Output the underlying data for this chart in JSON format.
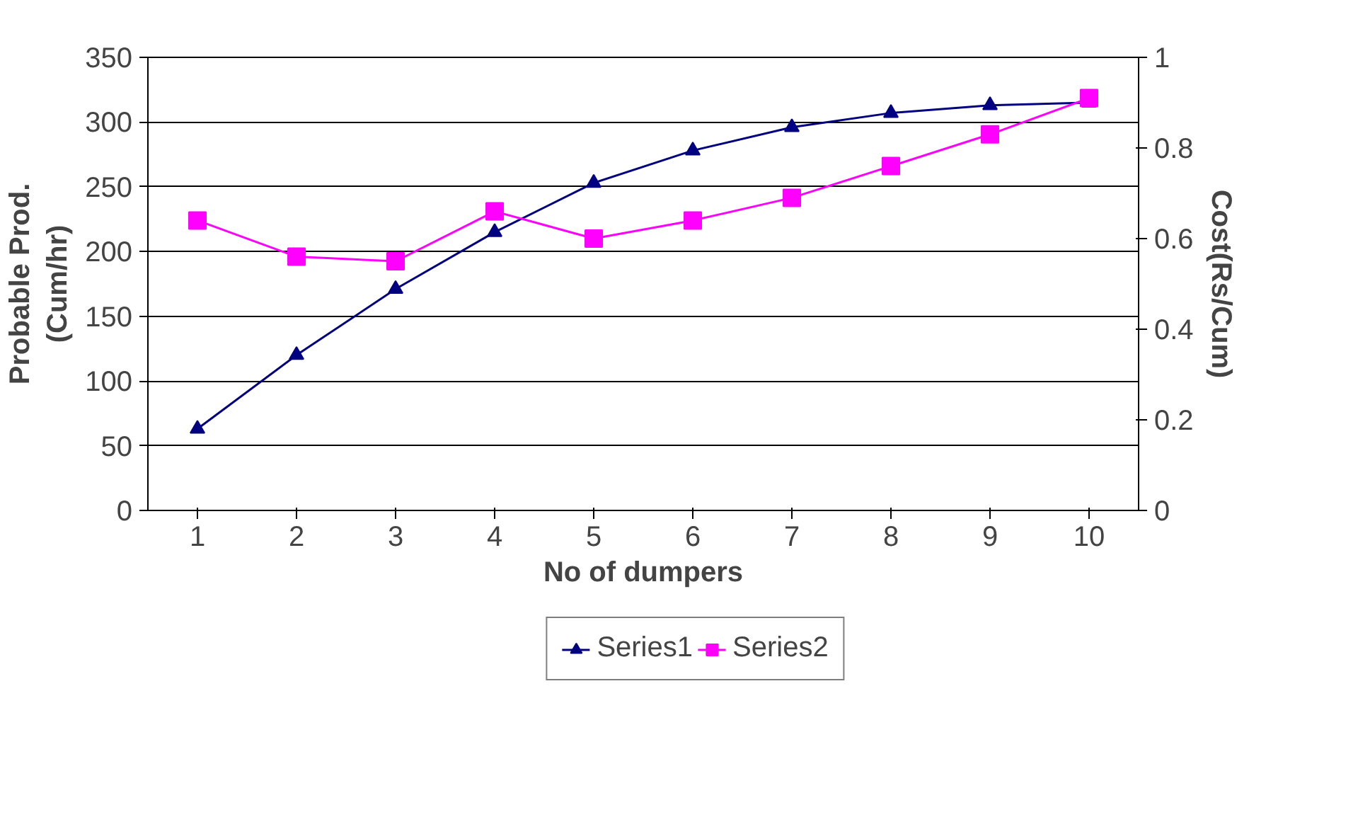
{
  "chart_data": {
    "type": "line",
    "xlabel": "No of dumpers",
    "ylabel": "Probable Prod.\n(Cum/hr)",
    "y2label": "Cost(Rs/Cum)",
    "categories": [
      "1",
      "2",
      "3",
      "4",
      "5",
      "6",
      "7",
      "8",
      "9",
      "10"
    ],
    "series": [
      {
        "name": "Series1",
        "color": "#000080",
        "marker": "triangle",
        "values": [
          63,
          120,
          171,
          215,
          253,
          278,
          296,
          307,
          313,
          315
        ]
      },
      {
        "name": "Series2",
        "color": "#ff00ff",
        "marker": "square",
        "axis": "y2",
        "values": [
          0.64,
          0.56,
          0.55,
          0.66,
          0.6,
          0.64,
          0.69,
          0.76,
          0.83,
          0.91
        ]
      }
    ],
    "ylim": [
      0,
      350
    ],
    "yticks": [
      0,
      50,
      100,
      150,
      200,
      250,
      300,
      350
    ],
    "y2lim": [
      0,
      1
    ],
    "y2ticks": [
      0,
      0.2,
      0.4,
      0.6,
      0.8,
      1
    ],
    "grid": "y",
    "legend": "bottom"
  }
}
